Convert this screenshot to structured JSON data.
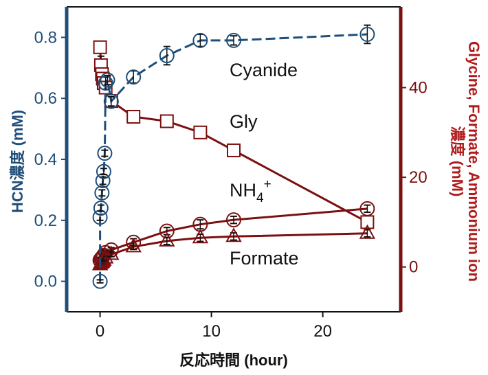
{
  "chart_data": {
    "type": "line",
    "xlabel": "反応時間 (hour)",
    "ylabel_left": "HCN濃度 (mM)",
    "ylabel_right_line1": "Glycine, Formate, Ammonium ion",
    "ylabel_right_line2": "濃度 (mM)",
    "xlim": [
      -3,
      27
    ],
    "ylim_left": [
      -0.1,
      0.9
    ],
    "ylim_right": [
      -10,
      58
    ],
    "x_ticks": [
      0,
      10,
      20
    ],
    "y_left_ticks": [
      0.0,
      0.2,
      0.4,
      0.6,
      0.8
    ],
    "y_left_tick_labels": [
      "0.0",
      "0.2",
      "0.4",
      "0.6",
      "0.8"
    ],
    "y_right_ticks": [
      0,
      20,
      40
    ],
    "grid": false,
    "colors": {
      "left_axis": "#1f4e79",
      "right_axis": "#7b1010",
      "cyanide": "#1f4e79",
      "others": "#7b1010"
    },
    "annotations": [
      {
        "text": "Cyanide",
        "series": "cyanide"
      },
      {
        "text": "Gly",
        "series": "gly"
      },
      {
        "text": "NH4+",
        "series": "ammonium"
      },
      {
        "text": "Formate",
        "series": "formate"
      }
    ],
    "series": [
      {
        "key": "cyanide",
        "axis": "left",
        "marker": "circle",
        "dashed": true,
        "x": [
          0,
          0,
          0.08,
          0.17,
          0.25,
          0.33,
          0.42,
          0.5,
          0.67,
          1,
          3,
          6,
          9,
          12,
          24
        ],
        "y": [
          0.0,
          0.21,
          0.24,
          0.29,
          0.33,
          0.36,
          0.42,
          0.65,
          0.66,
          0.59,
          0.67,
          0.74,
          0.79,
          0.79,
          0.81
        ],
        "err": [
          0.005,
          0.01,
          0.01,
          0.01,
          0.012,
          0.01,
          0.01,
          0.02,
          0.015,
          0.015,
          0.02,
          0.03,
          0.02,
          0.015,
          0.03
        ]
      },
      {
        "key": "gly",
        "axis": "right",
        "marker": "square",
        "x": [
          0,
          0.08,
          0.17,
          0.25,
          0.33,
          0.5,
          1,
          3,
          6,
          9,
          12,
          24
        ],
        "y": [
          49,
          45,
          43,
          42,
          41,
          40,
          37,
          33.5,
          32.5,
          30,
          26,
          10
        ],
        "err": [
          0,
          2,
          1,
          1,
          1,
          1,
          0.5,
          0.8,
          0.7,
          0.8,
          0.8,
          1
        ]
      },
      {
        "key": "ammonium",
        "axis": "right",
        "marker": "circle",
        "x": [
          0,
          0.08,
          0.17,
          0.25,
          0.33,
          0.5,
          1,
          3,
          6,
          9,
          12,
          24
        ],
        "y": [
          1.5,
          1.8,
          2.0,
          2.3,
          2.6,
          3.2,
          3.8,
          5.5,
          8,
          9.5,
          10.5,
          13
        ],
        "err": [
          0.3,
          0.3,
          0.3,
          0.4,
          0.4,
          0.5,
          0.5,
          0.8,
          0.8,
          1,
          0.8,
          0.8
        ]
      },
      {
        "key": "formate",
        "axis": "right",
        "marker": "triangle",
        "x": [
          0,
          0.08,
          0.17,
          0.25,
          0.33,
          0.5,
          1,
          3,
          6,
          9,
          12,
          24
        ],
        "y": [
          0.5,
          0.8,
          1.0,
          1.2,
          1.5,
          2.0,
          2.8,
          4.5,
          5.8,
          6.5,
          6.8,
          7.5
        ],
        "err": [
          0.3,
          0.3,
          0.3,
          0.3,
          0.4,
          0.4,
          0.5,
          0.6,
          0.8,
          0.8,
          0.8,
          0.8
        ]
      }
    ]
  }
}
